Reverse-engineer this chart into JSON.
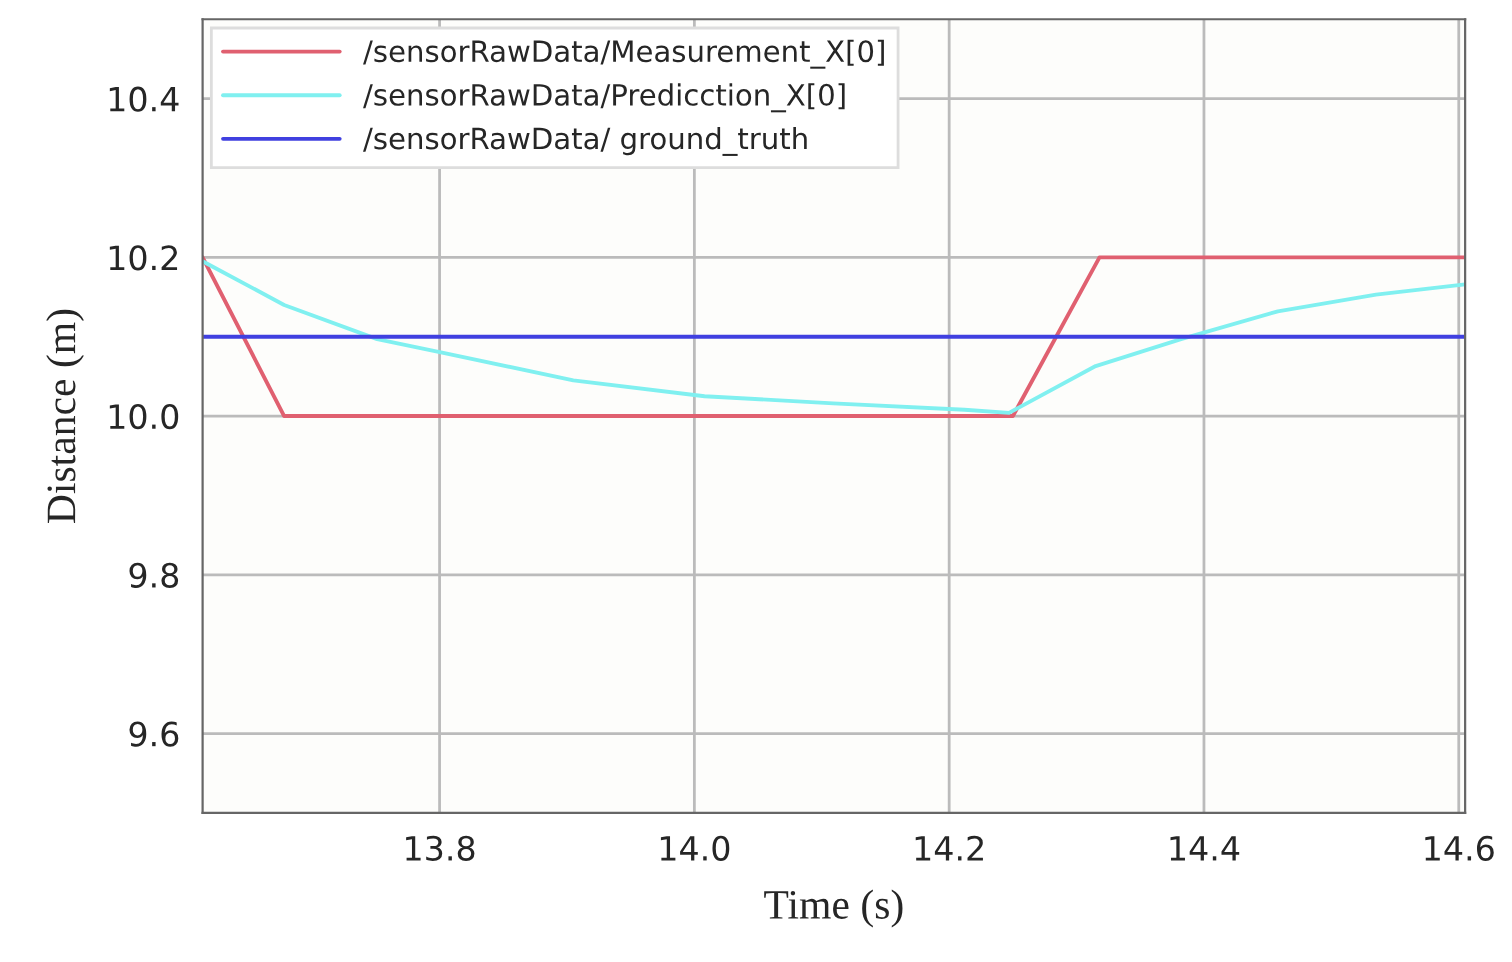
{
  "chart_data": {
    "type": "line",
    "xlabel": "Time (s)",
    "ylabel": "Distance (m)",
    "xlim": [
      13.614,
      14.605
    ],
    "ylim": [
      9.5,
      10.5
    ],
    "xticks": [
      13.8,
      {
        "value": 14.0,
        "label": "14.0"
      },
      14.2,
      14.4,
      14.6
    ],
    "yticks": [
      9.6,
      9.8,
      {
        "value": 10.0,
        "label": "10.0"
      },
      10.2,
      10.4
    ],
    "grid": true,
    "legend": "top left",
    "series": [
      {
        "name": "/sensorRawData/Measurement_X[0]",
        "color": "#e06070",
        "x": [
          13.614,
          13.678,
          14.25,
          14.318,
          14.605
        ],
        "values": [
          10.2,
          10.0,
          10.0,
          10.2,
          10.2
        ]
      },
      {
        "name": "/sensorRawData/Predicction_X[0]",
        "color": "#80f0f0",
        "x": [
          13.614,
          13.678,
          13.751,
          13.802,
          13.905,
          14.008,
          14.109,
          14.212,
          14.247,
          14.315,
          14.382,
          14.458,
          14.535,
          14.605
        ],
        "values": [
          10.195,
          10.14,
          10.097,
          10.08,
          10.045,
          10.025,
          10.016,
          10.008,
          10.004,
          10.063,
          10.097,
          10.132,
          10.153,
          10.166
        ]
      },
      {
        "name": "/sensorRawData/ ground_truth",
        "color": "#4040e0",
        "x": [
          13.614,
          14.605
        ],
        "values": [
          10.1,
          10.1
        ]
      }
    ]
  }
}
